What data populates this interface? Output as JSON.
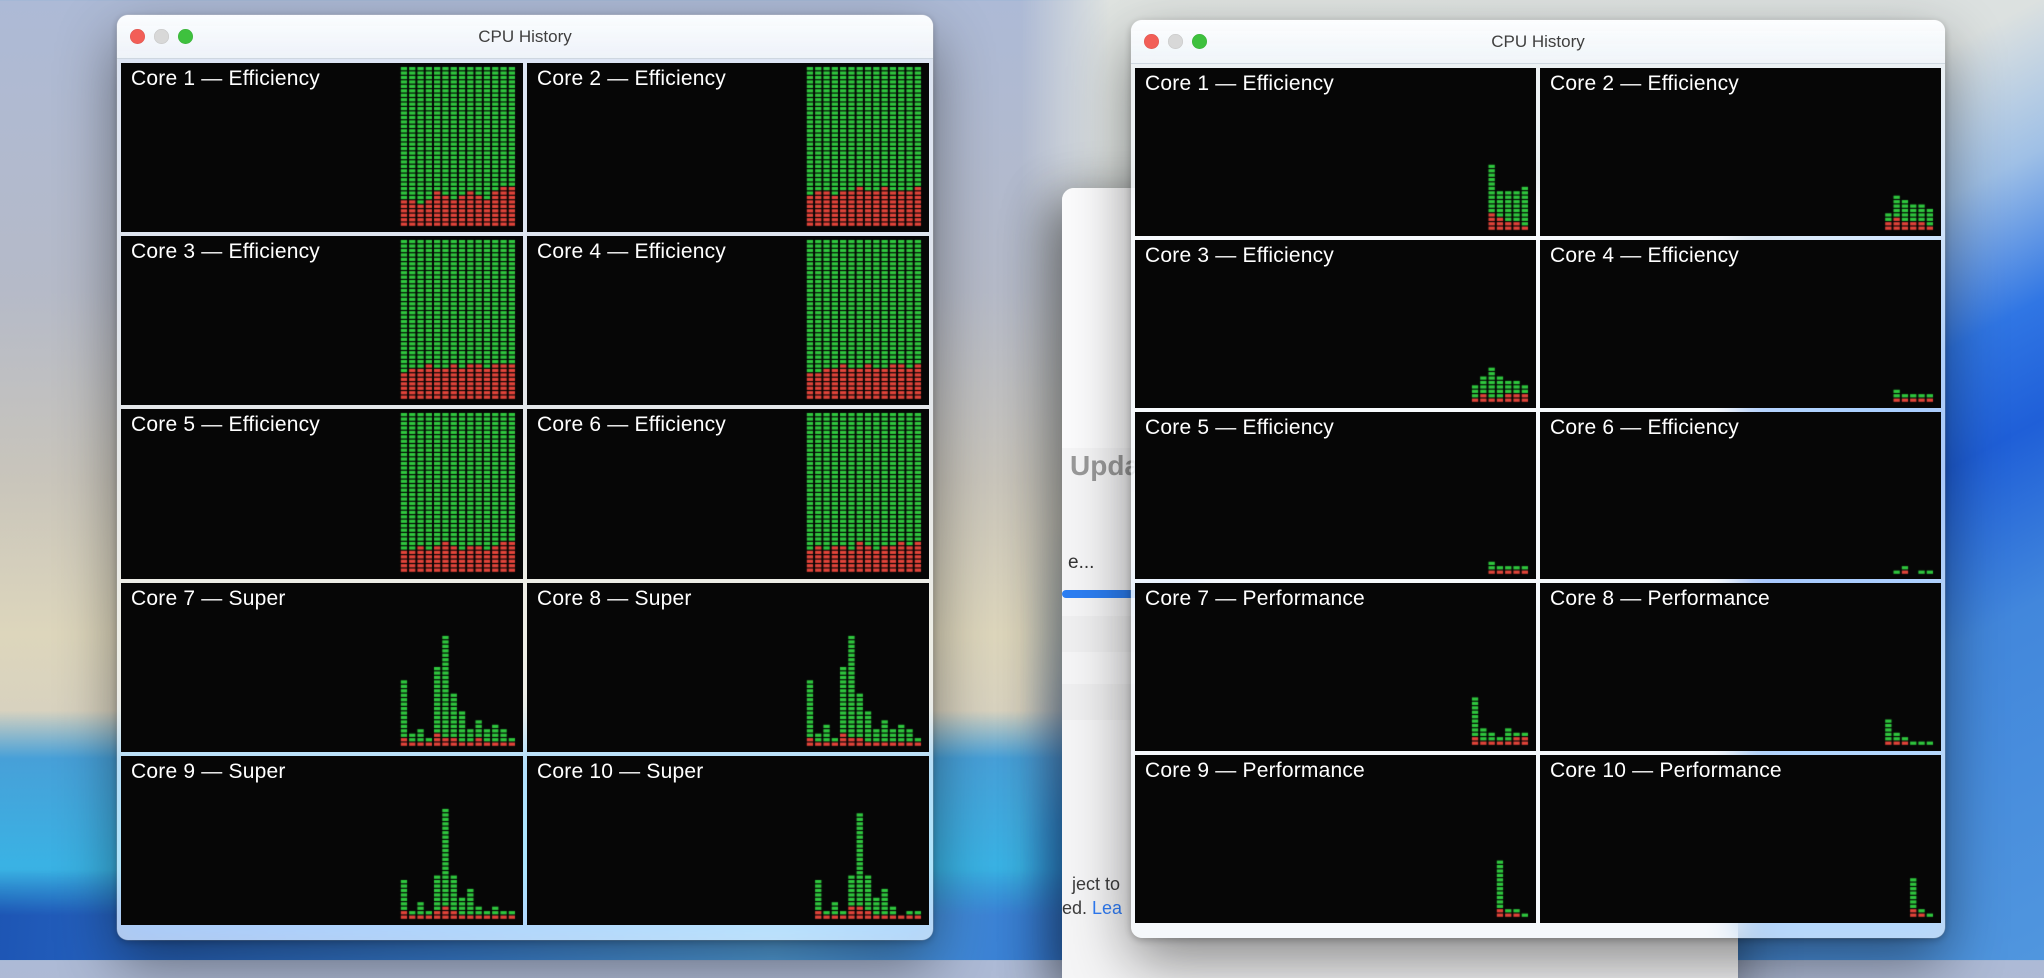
{
  "colors": {
    "cell_green": "#2fc73e",
    "cell_red": "#e2443a",
    "traffic_close": "#f25e57",
    "traffic_minimize": "#d8d8d8",
    "traffic_zoom": "#3ec13e",
    "link_blue": "#2f7cf6",
    "accent_bar_blue": "#2c7ef2"
  },
  "grid_rows": 36,
  "windows": [
    {
      "id": "left",
      "title": "CPU History",
      "cores": [
        {
          "label": "Core 1 — Efficiency",
          "cols": [
            [
              30,
              6
            ],
            [
              30,
              6
            ],
            [
              31,
              5
            ],
            [
              30,
              6
            ],
            [
              28,
              8
            ],
            [
              29,
              7
            ],
            [
              30,
              6
            ],
            [
              29,
              7
            ],
            [
              28,
              8
            ],
            [
              29,
              7
            ],
            [
              30,
              6
            ],
            [
              28,
              8
            ],
            [
              27,
              9
            ],
            [
              27,
              9
            ]
          ]
        },
        {
          "label": "Core 2 — Efficiency",
          "cols": [
            [
              29,
              7
            ],
            [
              28,
              8
            ],
            [
              28,
              8
            ],
            [
              29,
              7
            ],
            [
              28,
              8
            ],
            [
              28,
              8
            ],
            [
              27,
              9
            ],
            [
              28,
              8
            ],
            [
              28,
              8
            ],
            [
              27,
              9
            ],
            [
              28,
              8
            ],
            [
              28,
              8
            ],
            [
              28,
              8
            ],
            [
              27,
              9
            ]
          ]
        },
        {
          "label": "Core 3 — Efficiency",
          "cols": [
            [
              30,
              6
            ],
            [
              29,
              7
            ],
            [
              29,
              7
            ],
            [
              28,
              8
            ],
            [
              29,
              7
            ],
            [
              29,
              7
            ],
            [
              28,
              8
            ],
            [
              29,
              7
            ],
            [
              28,
              8
            ],
            [
              28,
              8
            ],
            [
              29,
              7
            ],
            [
              28,
              8
            ],
            [
              28,
              8
            ],
            [
              28,
              8
            ]
          ]
        },
        {
          "label": "Core 4 — Efficiency",
          "cols": [
            [
              30,
              6
            ],
            [
              30,
              6
            ],
            [
              29,
              7
            ],
            [
              29,
              7
            ],
            [
              28,
              8
            ],
            [
              29,
              7
            ],
            [
              29,
              7
            ],
            [
              28,
              8
            ],
            [
              29,
              7
            ],
            [
              29,
              7
            ],
            [
              28,
              8
            ],
            [
              28,
              8
            ],
            [
              29,
              7
            ],
            [
              28,
              8
            ]
          ]
        },
        {
          "label": "Core 5 — Efficiency",
          "cols": [
            [
              31,
              5
            ],
            [
              31,
              5
            ],
            [
              30,
              6
            ],
            [
              31,
              5
            ],
            [
              30,
              6
            ],
            [
              29,
              7
            ],
            [
              30,
              6
            ],
            [
              31,
              5
            ],
            [
              30,
              6
            ],
            [
              30,
              6
            ],
            [
              31,
              5
            ],
            [
              30,
              6
            ],
            [
              29,
              7
            ],
            [
              29,
              7
            ]
          ]
        },
        {
          "label": "Core 6 — Efficiency",
          "cols": [
            [
              31,
              5
            ],
            [
              30,
              6
            ],
            [
              31,
              5
            ],
            [
              30,
              6
            ],
            [
              30,
              6
            ],
            [
              31,
              5
            ],
            [
              29,
              7
            ],
            [
              30,
              6
            ],
            [
              31,
              5
            ],
            [
              30,
              6
            ],
            [
              30,
              6
            ],
            [
              29,
              7
            ],
            [
              30,
              6
            ],
            [
              29,
              7
            ]
          ]
        },
        {
          "label": "Core 7 — Super",
          "cols": [
            [
              13,
              2
            ],
            [
              2,
              1
            ],
            [
              3,
              1
            ],
            [
              1,
              1
            ],
            [
              15,
              3
            ],
            [
              23,
              2
            ],
            [
              10,
              2
            ],
            [
              7,
              1
            ],
            [
              3,
              1
            ],
            [
              4,
              2
            ],
            [
              3,
              1
            ],
            [
              4,
              1
            ],
            [
              3,
              1
            ],
            [
              1,
              1
            ]
          ]
        },
        {
          "label": "Core 8 — Super",
          "cols": [
            [
              13,
              2
            ],
            [
              2,
              1
            ],
            [
              4,
              1
            ],
            [
              1,
              1
            ],
            [
              15,
              3
            ],
            [
              23,
              2
            ],
            [
              10,
              2
            ],
            [
              7,
              1
            ],
            [
              3,
              1
            ],
            [
              5,
              1
            ],
            [
              3,
              1
            ],
            [
              4,
              1
            ],
            [
              3,
              1
            ],
            [
              1,
              1
            ]
          ]
        },
        {
          "label": "Core 9 — Super",
          "cols": [
            [
              7,
              2
            ],
            [
              1,
              1
            ],
            [
              3,
              1
            ],
            [
              1,
              1
            ],
            [
              8,
              2
            ],
            [
              22,
              3
            ],
            [
              8,
              2
            ],
            [
              4,
              1
            ],
            [
              6,
              1
            ],
            [
              2,
              1
            ],
            [
              1,
              1
            ],
            [
              2,
              1
            ],
            [
              1,
              1
            ],
            [
              1,
              1
            ]
          ]
        },
        {
          "label": "Core 10 — Super",
          "cols": [
            [
              7,
              2
            ],
            [
              1,
              1
            ],
            [
              3,
              1
            ],
            [
              1,
              1
            ],
            [
              7,
              3
            ],
            [
              21,
              3
            ],
            [
              8,
              2
            ],
            [
              4,
              1
            ],
            [
              6,
              1
            ],
            [
              2,
              1
            ],
            [
              0,
              1
            ],
            [
              1,
              1
            ],
            [
              1,
              1
            ]
          ]
        }
      ]
    },
    {
      "id": "right",
      "title": "CPU History",
      "cores": [
        {
          "label": "Core 1 — Efficiency",
          "cols": [
            [
              11,
              4
            ],
            [
              6,
              3
            ],
            [
              7,
              2
            ],
            [
              7,
              2
            ],
            [
              9,
              1
            ]
          ]
        },
        {
          "label": "Core 2 — Efficiency",
          "cols": [
            [
              2,
              2
            ],
            [
              5,
              3
            ],
            [
              5,
              2
            ],
            [
              4,
              2
            ],
            [
              4,
              2
            ],
            [
              4,
              1
            ]
          ]
        },
        {
          "label": "Core 3 — Efficiency",
          "cols": [
            [
              3,
              1
            ],
            [
              4,
              2
            ],
            [
              7,
              1
            ],
            [
              5,
              1
            ],
            [
              3,
              2
            ],
            [
              3,
              2
            ],
            [
              2,
              2
            ]
          ]
        },
        {
          "label": "Core 4 — Efficiency",
          "cols": [
            [
              2,
              1
            ],
            [
              1,
              1
            ],
            [
              1,
              1
            ],
            [
              1,
              1
            ],
            [
              1,
              1
            ]
          ]
        },
        {
          "label": "Core 5 — Efficiency",
          "cols": [
            [
              2,
              1
            ],
            [
              1,
              1
            ],
            [
              1,
              1
            ],
            [
              1,
              1
            ],
            [
              1,
              1
            ]
          ]
        },
        {
          "label": "Core 6 — Efficiency",
          "cols": [
            [
              1,
              0
            ],
            [
              1,
              1
            ],
            [
              0,
              0
            ],
            [
              1,
              0
            ],
            [
              1,
              0
            ]
          ]
        },
        {
          "label": "Core 7 — Performance",
          "cols": [
            [
              9,
              2
            ],
            [
              3,
              1
            ],
            [
              2,
              1
            ],
            [
              1,
              1
            ],
            [
              3,
              1
            ],
            [
              1,
              2
            ],
            [
              1,
              2
            ]
          ]
        },
        {
          "label": "Core 8 — Performance",
          "cols": [
            [
              5,
              1
            ],
            [
              2,
              1
            ],
            [
              1,
              1
            ],
            [
              1,
              0
            ],
            [
              1,
              0
            ],
            [
              1,
              0
            ]
          ]
        },
        {
          "label": "Core 9 — Performance",
          "cols": [
            [
              11,
              2
            ],
            [
              1,
              1
            ],
            [
              1,
              1
            ],
            [
              1,
              0
            ]
          ]
        },
        {
          "label": "Core 10 — Performance",
          "cols": [
            [
              7,
              2
            ],
            [
              1,
              1
            ],
            [
              1,
              0
            ]
          ]
        }
      ]
    }
  ],
  "background_window": {
    "title_fragment": "Upda",
    "row_fragment": "e...",
    "footer_fragment_1": "ject to",
    "footer_fragment_2": "ed. ",
    "footer_link_fragment": "Lea"
  }
}
